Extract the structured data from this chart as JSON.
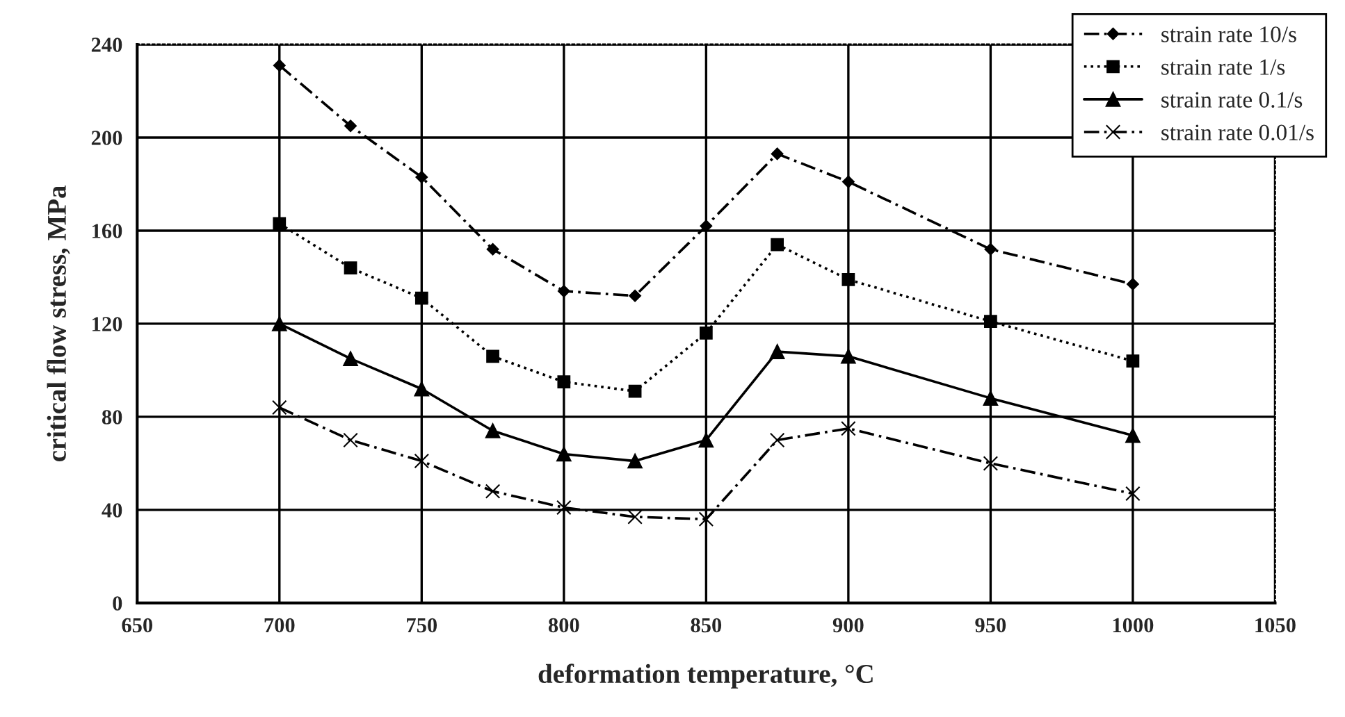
{
  "chart_data": {
    "type": "line",
    "xlabel": "deformation temperature, °C",
    "ylabel": "critical flow stress, MPa",
    "x": [
      700,
      725,
      750,
      775,
      800,
      825,
      850,
      875,
      900,
      950,
      1000
    ],
    "series": [
      {
        "name": "strain rate 10/s",
        "color": "#000000",
        "marker": "diamond",
        "line_style": "dashed",
        "values": [
          231,
          205,
          183,
          152,
          134,
          132,
          162,
          193,
          181,
          152,
          137
        ]
      },
      {
        "name": "strain rate 1/s",
        "color": "#000000",
        "marker": "square",
        "line_style": "dotted",
        "values": [
          163,
          144,
          131,
          106,
          95,
          91,
          116,
          154,
          139,
          121,
          104
        ]
      },
      {
        "name": "strain rate 0.1/s",
        "color": "#000000",
        "marker": "triangle",
        "line_style": "solid",
        "values": [
          120,
          105,
          92,
          74,
          64,
          61,
          70,
          108,
          106,
          88,
          72
        ]
      },
      {
        "name": "strain rate 0.01/s",
        "color": "#000000",
        "marker": "cross",
        "line_style": "dashed",
        "values": [
          84,
          70,
          61,
          48,
          41,
          37,
          36,
          70,
          75,
          60,
          47
        ]
      }
    ],
    "xlim": [
      650,
      1050
    ],
    "xticks": [
      650,
      700,
      750,
      800,
      850,
      900,
      950,
      1000,
      1050
    ],
    "ylim": [
      0,
      240
    ],
    "yticks": [
      0,
      40,
      80,
      120,
      160,
      200,
      240
    ],
    "grid": true,
    "legend": "top right"
  }
}
